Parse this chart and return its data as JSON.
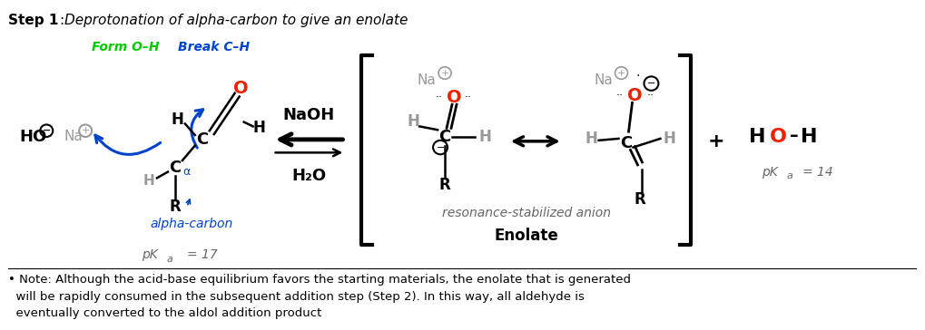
{
  "bg_color": "#ffffff",
  "green_color": "#00cc00",
  "blue_color": "#0044cc",
  "red_color": "#ee2200",
  "gray_color": "#999999",
  "black_color": "#000000",
  "dark_gray": "#666666",
  "note_line1": "• Note: Although the acid-base equilibrium favors the starting materials, the enolate that is generated",
  "note_line2": "  will be rapidly consumed in the subsequent addition step (Step 2). In this way, all aldehyde is",
  "note_line3": "  eventually converted to the aldol addition product"
}
